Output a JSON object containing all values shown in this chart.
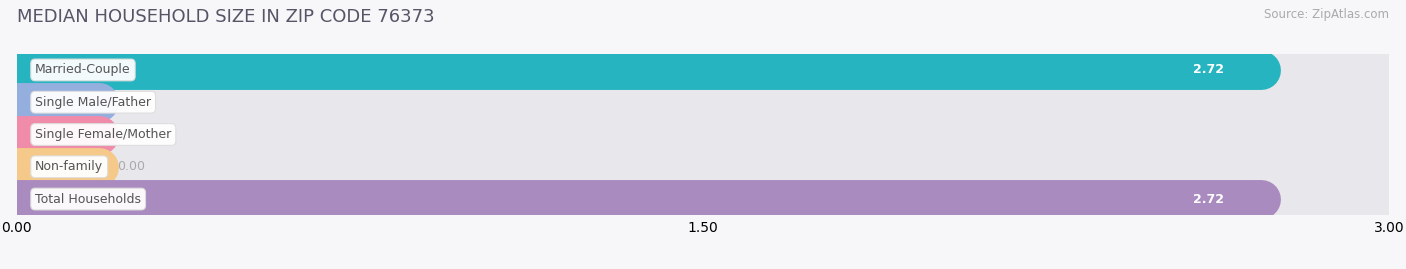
{
  "title": "MEDIAN HOUSEHOLD SIZE IN ZIP CODE 76373",
  "source": "Source: ZipAtlas.com",
  "categories": [
    "Married-Couple",
    "Single Male/Father",
    "Single Female/Mother",
    "Non-family",
    "Total Households"
  ],
  "values": [
    2.72,
    0.0,
    0.0,
    0.0,
    2.72
  ],
  "bar_colors": [
    "#26b5c0",
    "#94aedd",
    "#f08caa",
    "#f5c98a",
    "#a98bbf"
  ],
  "bar_bg_color": "#e8e8ec",
  "xlim": [
    0,
    3.0
  ],
  "xticks": [
    0.0,
    1.5,
    3.0
  ],
  "xtick_labels": [
    "0.00",
    "1.50",
    "3.00"
  ],
  "background_color": "#f7f7f9",
  "title_fontsize": 13,
  "bar_label_fontsize": 9,
  "value_fontsize": 9,
  "source_fontsize": 8.5,
  "bar_height": 0.68,
  "bar_gap": 0.32
}
